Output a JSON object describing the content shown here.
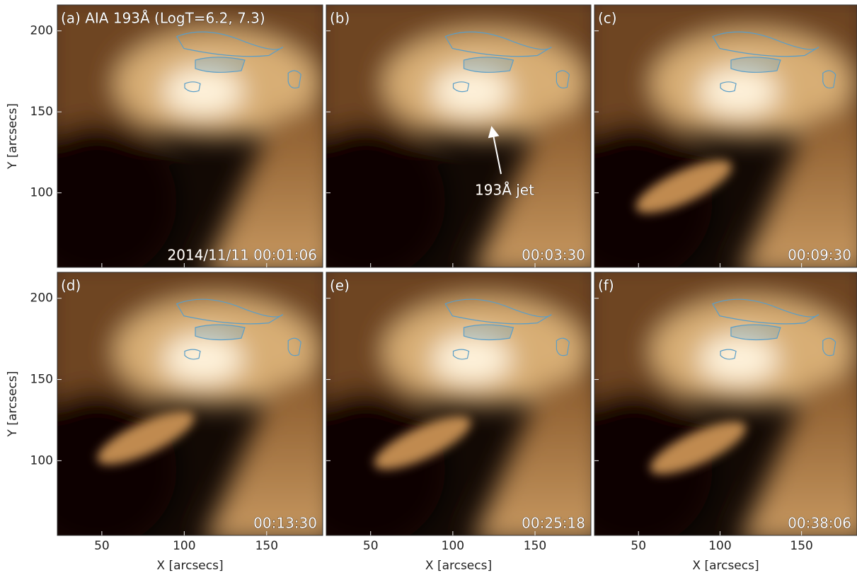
{
  "figure": {
    "xlabel": "X [arcsecs]",
    "ylabel": "Y [arcsecs]",
    "xlim": [
      23,
      184
    ],
    "ylim": [
      54,
      216
    ],
    "xticks": [
      50,
      100,
      150
    ],
    "yticks": [
      100,
      150,
      200
    ],
    "annotation": "193Å jet",
    "panels": [
      {
        "label": "(a) AIA 193Å (LogT=6.2, 7.3)",
        "time": "2014/11/11  00:01:06"
      },
      {
        "label": "(b)",
        "time": "00:03:30"
      },
      {
        "label": "(c)",
        "time": "00:09:30"
      },
      {
        "label": "(d)",
        "time": "00:13:30"
      },
      {
        "label": "(e)",
        "time": "00:25:18"
      },
      {
        "label": "(f)",
        "time": "00:38:06"
      }
    ]
  }
}
